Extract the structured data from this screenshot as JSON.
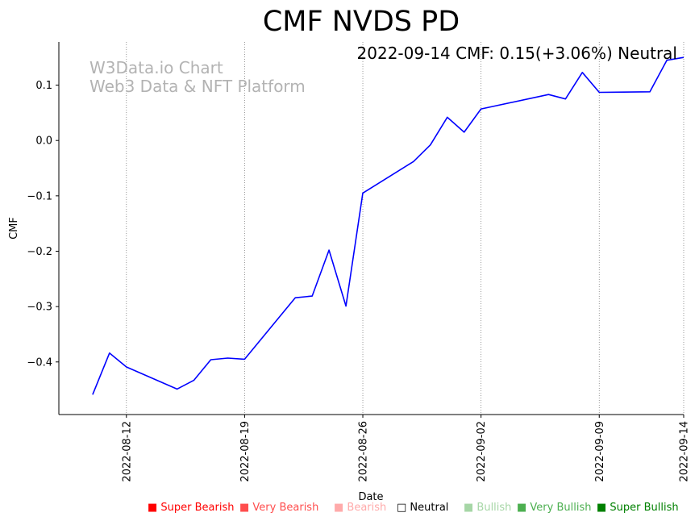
{
  "chart_data": {
    "type": "line",
    "title": "CMF NVDS PD",
    "annotation": "2022-09-14 CMF: 0.15(+3.06%) Neutral",
    "watermark": [
      "W3Data.io Chart",
      "Web3 Data & NFT Platform"
    ],
    "xlabel": "Date",
    "ylabel": "CMF",
    "xlim": [
      "2022-08-08",
      "2022-09-14"
    ],
    "ylim": [
      -0.495,
      0.178
    ],
    "x_ticks": [
      "2022-08-12",
      "2022-08-19",
      "2022-08-26",
      "2022-09-02",
      "2022-09-09",
      "2022-09-14"
    ],
    "y_ticks": [
      0.1,
      0.0,
      -0.1,
      -0.2,
      -0.3,
      -0.4
    ],
    "y_tick_labels": [
      "0.1",
      "0.0",
      "−0.1",
      "−0.2",
      "−0.3",
      "−0.4"
    ],
    "grid": "vertical dotted at x ticks",
    "series": [
      {
        "color": "#0000ff",
        "points": [
          [
            "2022-08-10",
            -0.459
          ],
          [
            "2022-08-11",
            -0.384
          ],
          [
            "2022-08-12",
            -0.409
          ],
          [
            "2022-08-15",
            -0.449
          ],
          [
            "2022-08-16",
            -0.433
          ],
          [
            "2022-08-17",
            -0.396
          ],
          [
            "2022-08-18",
            -0.393
          ],
          [
            "2022-08-19",
            -0.395
          ],
          [
            "2022-08-22",
            -0.284
          ],
          [
            "2022-08-23",
            -0.281
          ],
          [
            "2022-08-24",
            -0.198
          ],
          [
            "2022-08-25",
            -0.299
          ],
          [
            "2022-08-26",
            -0.095
          ],
          [
            "2022-08-29",
            -0.038
          ],
          [
            "2022-08-30",
            -0.008
          ],
          [
            "2022-08-31",
            0.042
          ],
          [
            "2022-09-01",
            0.015
          ],
          [
            "2022-09-02",
            0.057
          ],
          [
            "2022-09-06",
            0.083
          ],
          [
            "2022-09-07",
            0.075
          ],
          [
            "2022-09-08",
            0.123
          ],
          [
            "2022-09-09",
            0.087
          ],
          [
            "2022-09-12",
            0.088
          ],
          [
            "2022-09-13",
            0.145
          ],
          [
            "2022-09-14",
            0.15
          ]
        ]
      }
    ],
    "legend": [
      {
        "label": "Super Bearish",
        "color": "#ff0000",
        "marker": "■"
      },
      {
        "label": "Very Bearish",
        "color": "#ff4d4d",
        "marker": "■"
      },
      {
        "label": "Bearish",
        "color": "#ffaaaa",
        "marker": "■"
      },
      {
        "label": "Neutral",
        "color": "#000000",
        "marker": "□"
      },
      {
        "label": "Bullish",
        "color": "#a6d6a6",
        "marker": "■"
      },
      {
        "label": "Very Bullish",
        "color": "#4caf50",
        "marker": "■"
      },
      {
        "label": "Super Bullish",
        "color": "#008000",
        "marker": "■"
      }
    ],
    "legend_placement": "bottom"
  }
}
